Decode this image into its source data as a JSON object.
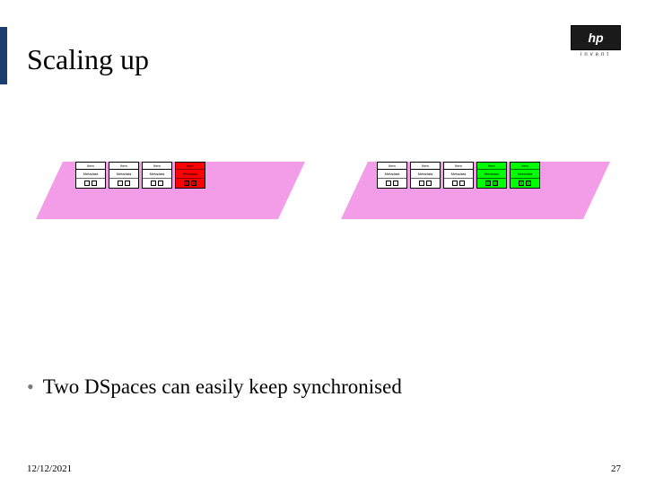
{
  "title": "Scaling up",
  "logo": {
    "text": "hp",
    "subtext": "invent"
  },
  "bullet": "Two DSpaces can easily keep synchronised",
  "footer": {
    "date": "12/12/2021",
    "page": "27"
  },
  "diagram": {
    "platform_color": "#f39ce8",
    "left": {
      "cards": [
        {
          "header": "Item",
          "label": "Metadata",
          "variant": "white"
        },
        {
          "header": "Item",
          "label": "Metadata",
          "variant": "white"
        },
        {
          "header": "Item",
          "label": "Metadata",
          "variant": "white"
        },
        {
          "header": "Item",
          "label": "Metadata",
          "variant": "red"
        }
      ]
    },
    "right": {
      "cards": [
        {
          "header": "Item",
          "label": "Metadata",
          "variant": "white"
        },
        {
          "header": "Item",
          "label": "Metadata",
          "variant": "white"
        },
        {
          "header": "Item",
          "label": "Metadata",
          "variant": "white"
        },
        {
          "header": "Item",
          "label": "Metadata",
          "variant": "green"
        },
        {
          "header": "Item",
          "label": "Metadata",
          "variant": "green"
        }
      ]
    }
  }
}
